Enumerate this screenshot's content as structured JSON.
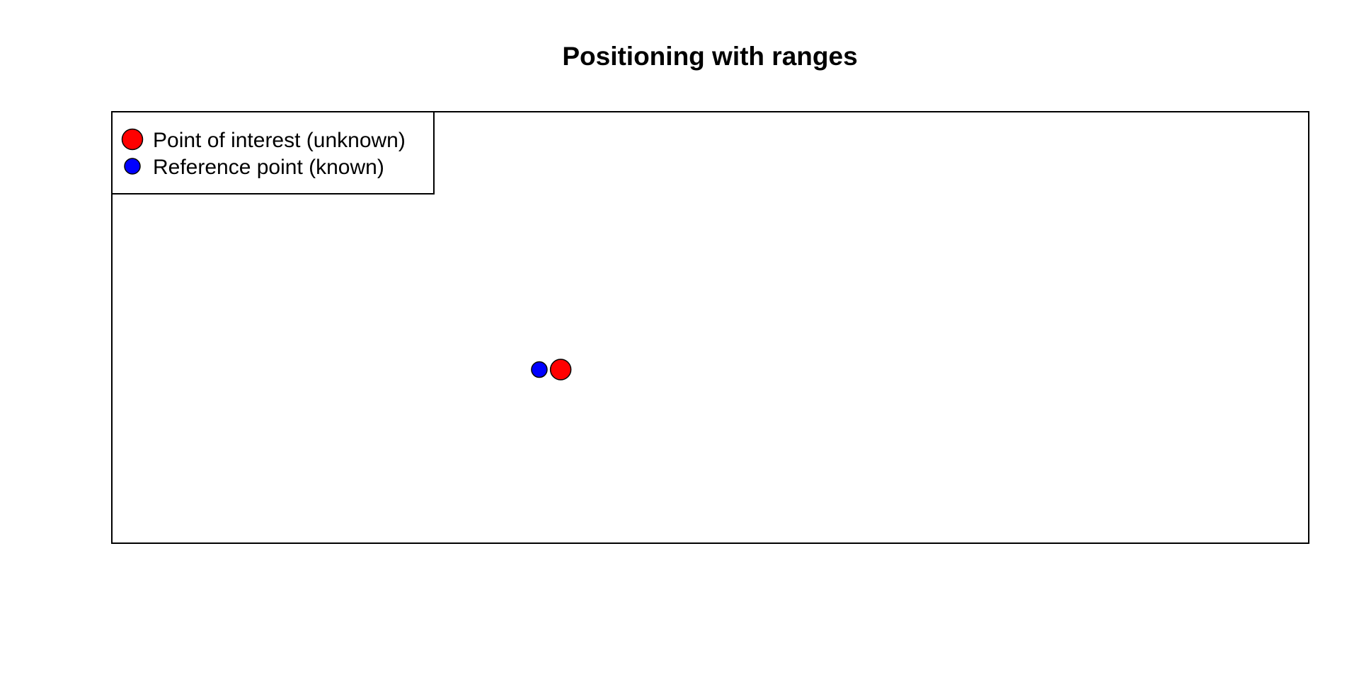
{
  "chart_data": {
    "type": "scatter",
    "title": "Positioning with ranges",
    "xlabel": "",
    "ylabel": "",
    "axes_shown": false,
    "grid": false,
    "legend_position": "top-left",
    "series": [
      {
        "name": "Point of interest (unknown)",
        "color": "#ff0000",
        "marker": "large-circle",
        "points": [
          {
            "x": 0.5,
            "y": 0
          }
        ]
      },
      {
        "name": "Reference point (known)",
        "color": "#0000ff",
        "marker": "small-circle",
        "points": [
          {
            "x": 0,
            "y": 0
          }
        ]
      }
    ],
    "xlim": [
      -10,
      18
    ],
    "ylim": [
      -3.3,
      4.9
    ]
  }
}
